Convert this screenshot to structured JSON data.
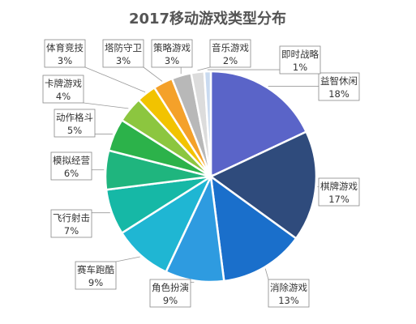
{
  "chart_data": {
    "type": "pie",
    "title": "2017移动游戏类型分布",
    "slices": [
      {
        "label": "益智休闲",
        "value": 18,
        "value_label": "18%",
        "color": "#5a64c8"
      },
      {
        "label": "棋牌游戏",
        "value": 17,
        "value_label": "17%",
        "color": "#2f4b7c"
      },
      {
        "label": "消除游戏",
        "value": 13,
        "value_label": "13%",
        "color": "#1a6fcb"
      },
      {
        "label": "角色扮演",
        "value": 9,
        "value_label": "9%",
        "color": "#2e9be0"
      },
      {
        "label": "赛车跑酷",
        "value": 9,
        "value_label": "9%",
        "color": "#1fb6d3"
      },
      {
        "label": "飞行射击",
        "value": 7,
        "value_label": "7%",
        "color": "#16b8a6"
      },
      {
        "label": "模拟经营",
        "value": 6,
        "value_label": "6%",
        "color": "#1fb57e"
      },
      {
        "label": "动作格斗",
        "value": 5,
        "value_label": "5%",
        "color": "#2cb24a"
      },
      {
        "label": "卡牌游戏",
        "value": 4,
        "value_label": "4%",
        "color": "#8cc63f"
      },
      {
        "label": "体育竞技",
        "value": 3,
        "value_label": "3%",
        "color": "#f2c300"
      },
      {
        "label": "塔防守卫",
        "value": 3,
        "value_label": "3%",
        "color": "#f4a12a"
      },
      {
        "label": "策略游戏",
        "value": 3,
        "value_label": "3%",
        "color": "#b8b8b8"
      },
      {
        "label": "音乐游戏",
        "value": 2,
        "value_label": "2%",
        "color": "#dcdcdc"
      },
      {
        "label": "即时战略",
        "value": 1,
        "value_label": "1%",
        "color": "#c9daf0"
      }
    ]
  }
}
